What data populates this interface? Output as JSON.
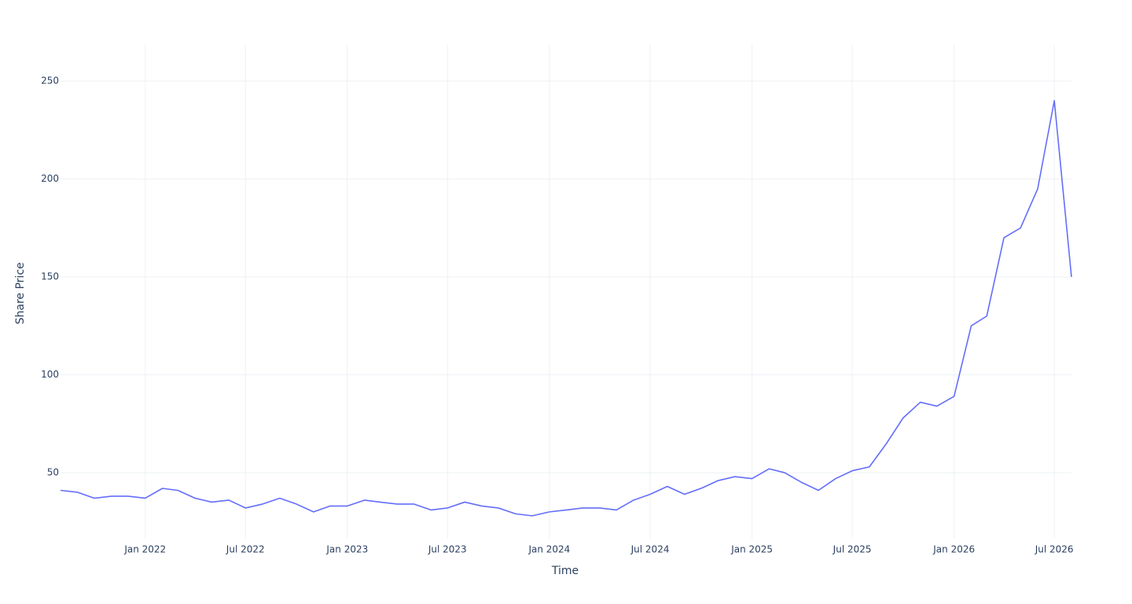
{
  "chart_data": {
    "type": "line",
    "x_label": "Time",
    "y_label": "Share Price",
    "x": [
      "2021-08",
      "2021-09",
      "2021-10",
      "2021-11",
      "2021-12",
      "2022-01",
      "2022-02",
      "2022-03",
      "2022-04",
      "2022-05",
      "2022-06",
      "2022-07",
      "2022-08",
      "2022-09",
      "2022-10",
      "2022-11",
      "2022-12",
      "2023-01",
      "2023-02",
      "2023-03",
      "2023-04",
      "2023-05",
      "2023-06",
      "2023-07",
      "2023-08",
      "2023-09",
      "2023-10",
      "2023-11",
      "2023-12",
      "2024-01",
      "2024-02",
      "2024-03",
      "2024-04",
      "2024-05",
      "2024-06",
      "2024-07",
      "2024-08",
      "2024-09",
      "2024-10",
      "2024-11",
      "2024-12",
      "2025-01",
      "2025-02",
      "2025-03",
      "2025-04",
      "2025-05",
      "2025-06",
      "2025-07",
      "2025-08",
      "2025-09",
      "2025-10",
      "2025-11",
      "2025-12",
      "2026-01",
      "2026-02",
      "2026-03",
      "2026-04",
      "2026-05",
      "2026-06",
      "2026-07",
      "2026-08"
    ],
    "values": [
      41,
      40,
      37,
      38,
      38,
      37,
      42,
      41,
      37,
      35,
      36,
      32,
      34,
      37,
      34,
      30,
      33,
      33,
      36,
      35,
      34,
      34,
      31,
      32,
      35,
      33,
      32,
      29,
      28,
      30,
      31,
      32,
      32,
      31,
      36,
      39,
      43,
      39,
      42,
      46,
      48,
      47,
      52,
      50,
      45,
      41,
      47,
      51,
      53,
      65,
      78,
      86,
      84,
      89,
      125,
      130,
      170,
      175,
      195,
      240,
      150
    ],
    "color": "#636efa",
    "xlim": [
      "2021-08",
      "2026-08"
    ],
    "xticks": [
      {
        "value": "2022-01",
        "label": "Jan 2022"
      },
      {
        "value": "2022-07",
        "label": "Jul 2022"
      },
      {
        "value": "2023-01",
        "label": "Jan 2023"
      },
      {
        "value": "2023-07",
        "label": "Jul 2023"
      },
      {
        "value": "2024-01",
        "label": "Jan 2024"
      },
      {
        "value": "2024-07",
        "label": "Jul 2024"
      },
      {
        "value": "2025-01",
        "label": "Jan 2025"
      },
      {
        "value": "2025-07",
        "label": "Jul 2025"
      },
      {
        "value": "2026-01",
        "label": "Jan 2026"
      },
      {
        "value": "2026-07",
        "label": "Jul 2026"
      }
    ],
    "ylim": [
      16.3,
      268.5
    ],
    "yticks": [
      50,
      100,
      150,
      200,
      250
    ],
    "grid": true
  }
}
